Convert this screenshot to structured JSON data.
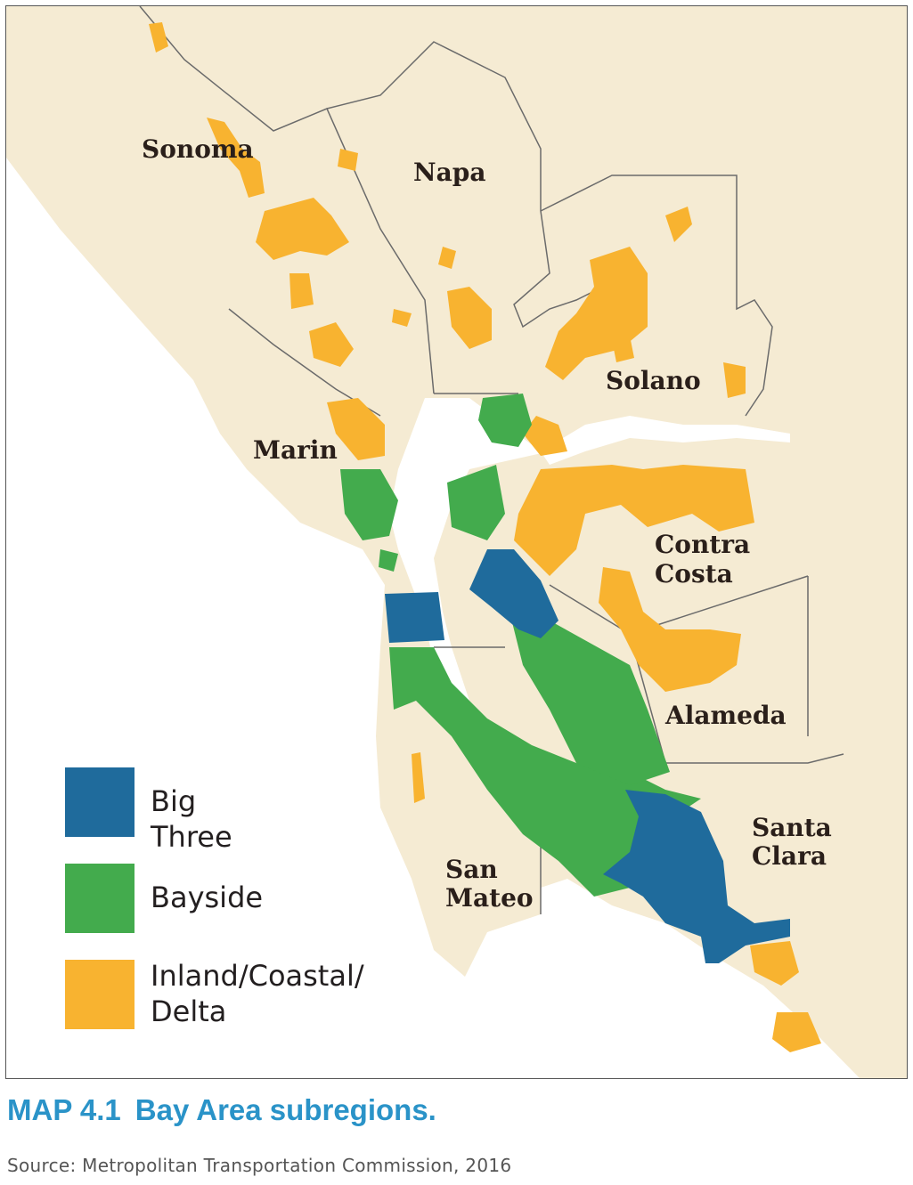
{
  "colors": {
    "land": "#f5ebd3",
    "water": "#ffffff",
    "big_three": "#1f6b9c",
    "bayside": "#43ab4d",
    "inland": "#f8b330",
    "caption": "#2a93c8"
  },
  "counties": [
    {
      "id": "sonoma",
      "label": "Sonoma"
    },
    {
      "id": "napa",
      "label": "Napa"
    },
    {
      "id": "solano",
      "label": "Solano"
    },
    {
      "id": "marin",
      "label": "Marin"
    },
    {
      "id": "contra-costa",
      "label": "Contra Costa"
    },
    {
      "id": "alameda",
      "label": "Alameda"
    },
    {
      "id": "san-mateo",
      "label": "San Mateo"
    },
    {
      "id": "santa-clara",
      "label": "Santa Clara"
    }
  ],
  "legend": {
    "items": [
      {
        "label": "Big Three"
      },
      {
        "label": "Bayside"
      },
      {
        "label": "Inland/Coastal/\nDelta"
      }
    ]
  },
  "caption": {
    "number": "MAP 4.1",
    "title": "Bay Area subregions."
  },
  "source": "Source: Metropolitan Transportation Commission, 2016"
}
